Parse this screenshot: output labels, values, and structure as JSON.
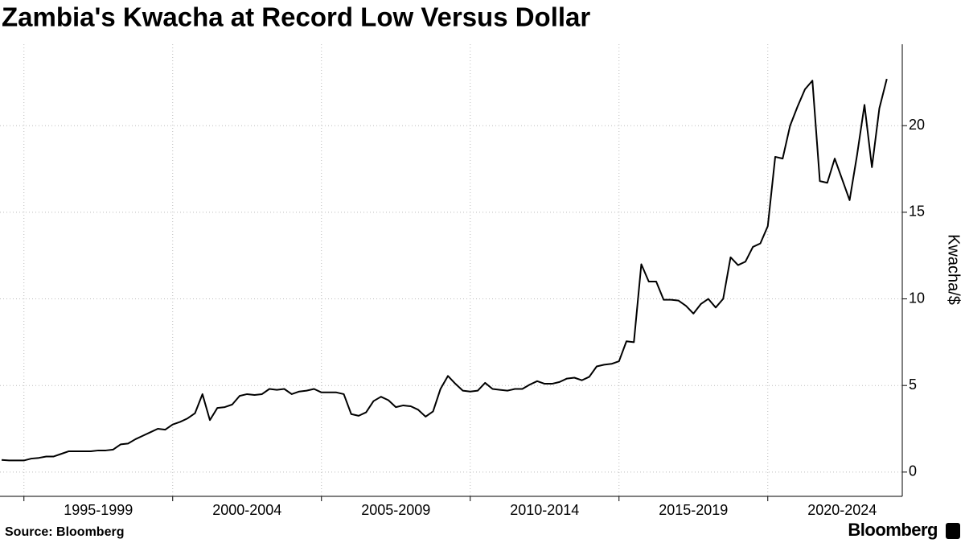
{
  "chart_data": {
    "type": "line",
    "title": "Zambia's Kwacha at Record Low Versus Dollar",
    "source": "Source: Bloomberg",
    "brand": "Bloomberg",
    "y_label": "Kwacha/$",
    "categories": [
      null,
      null,
      null,
      null,
      null,
      null,
      null,
      null,
      null,
      null,
      null,
      null,
      null,
      "1995-1999",
      null,
      null,
      null,
      null,
      null,
      null,
      null,
      null,
      null,
      null,
      null,
      null,
      null,
      null,
      null,
      null,
      null,
      null,
      null,
      "2000-2004",
      null,
      null,
      null,
      null,
      null,
      null,
      null,
      null,
      null,
      null,
      null,
      null,
      null,
      null,
      null,
      null,
      null,
      null,
      null,
      "2005-2009",
      null,
      null,
      null,
      null,
      null,
      null,
      null,
      null,
      null,
      null,
      null,
      null,
      null,
      null,
      null,
      null,
      null,
      null,
      null,
      "2010-2014",
      null,
      null,
      null,
      null,
      null,
      null,
      null,
      null,
      null,
      null,
      null,
      null,
      null,
      null,
      null,
      null,
      null,
      null,
      null,
      "2015-2019",
      null,
      null,
      null,
      null,
      null,
      null,
      null,
      null,
      null,
      null,
      null,
      null,
      null,
      null,
      null,
      null,
      null,
      null,
      null,
      "2020-2024",
      null,
      null,
      null,
      null,
      null,
      null
    ],
    "values": [
      0.7,
      0.67,
      0.67,
      0.67,
      0.78,
      0.82,
      0.9,
      0.9,
      1.05,
      1.2,
      1.2,
      1.2,
      1.2,
      1.25,
      1.25,
      1.3,
      1.6,
      1.65,
      1.9,
      2.1,
      2.3,
      2.5,
      2.45,
      2.75,
      2.9,
      3.1,
      3.4,
      4.5,
      3.0,
      3.7,
      3.75,
      3.9,
      4.4,
      4.5,
      4.45,
      4.5,
      4.8,
      4.75,
      4.8,
      4.5,
      4.65,
      4.7,
      4.8,
      4.6,
      4.6,
      4.6,
      4.5,
      3.35,
      3.25,
      3.45,
      4.1,
      4.35,
      4.15,
      3.75,
      3.85,
      3.8,
      3.6,
      3.2,
      3.5,
      4.8,
      5.55,
      5.1,
      4.7,
      4.65,
      4.7,
      5.15,
      4.8,
      4.75,
      4.7,
      4.8,
      4.8,
      5.05,
      5.25,
      5.1,
      5.1,
      5.2,
      5.4,
      5.45,
      5.3,
      5.5,
      6.1,
      6.2,
      6.25,
      6.4,
      7.55,
      7.5,
      12.0,
      11.0,
      11.0,
      9.95,
      9.95,
      9.9,
      9.6,
      9.15,
      9.7,
      10.0,
      9.5,
      10.0,
      12.4,
      11.95,
      12.15,
      13.0,
      13.2,
      14.2,
      18.2,
      18.1,
      20.0,
      21.1,
      22.1,
      22.6,
      16.8,
      16.7,
      18.1,
      16.9,
      15.7,
      18.3,
      21.2,
      17.6,
      21.0,
      22.7
    ],
    "color": "#000000",
    "ylim": [
      -1.4,
      24.7
    ],
    "yticks": [
      0,
      5,
      10,
      15,
      20
    ],
    "grid": true
  }
}
